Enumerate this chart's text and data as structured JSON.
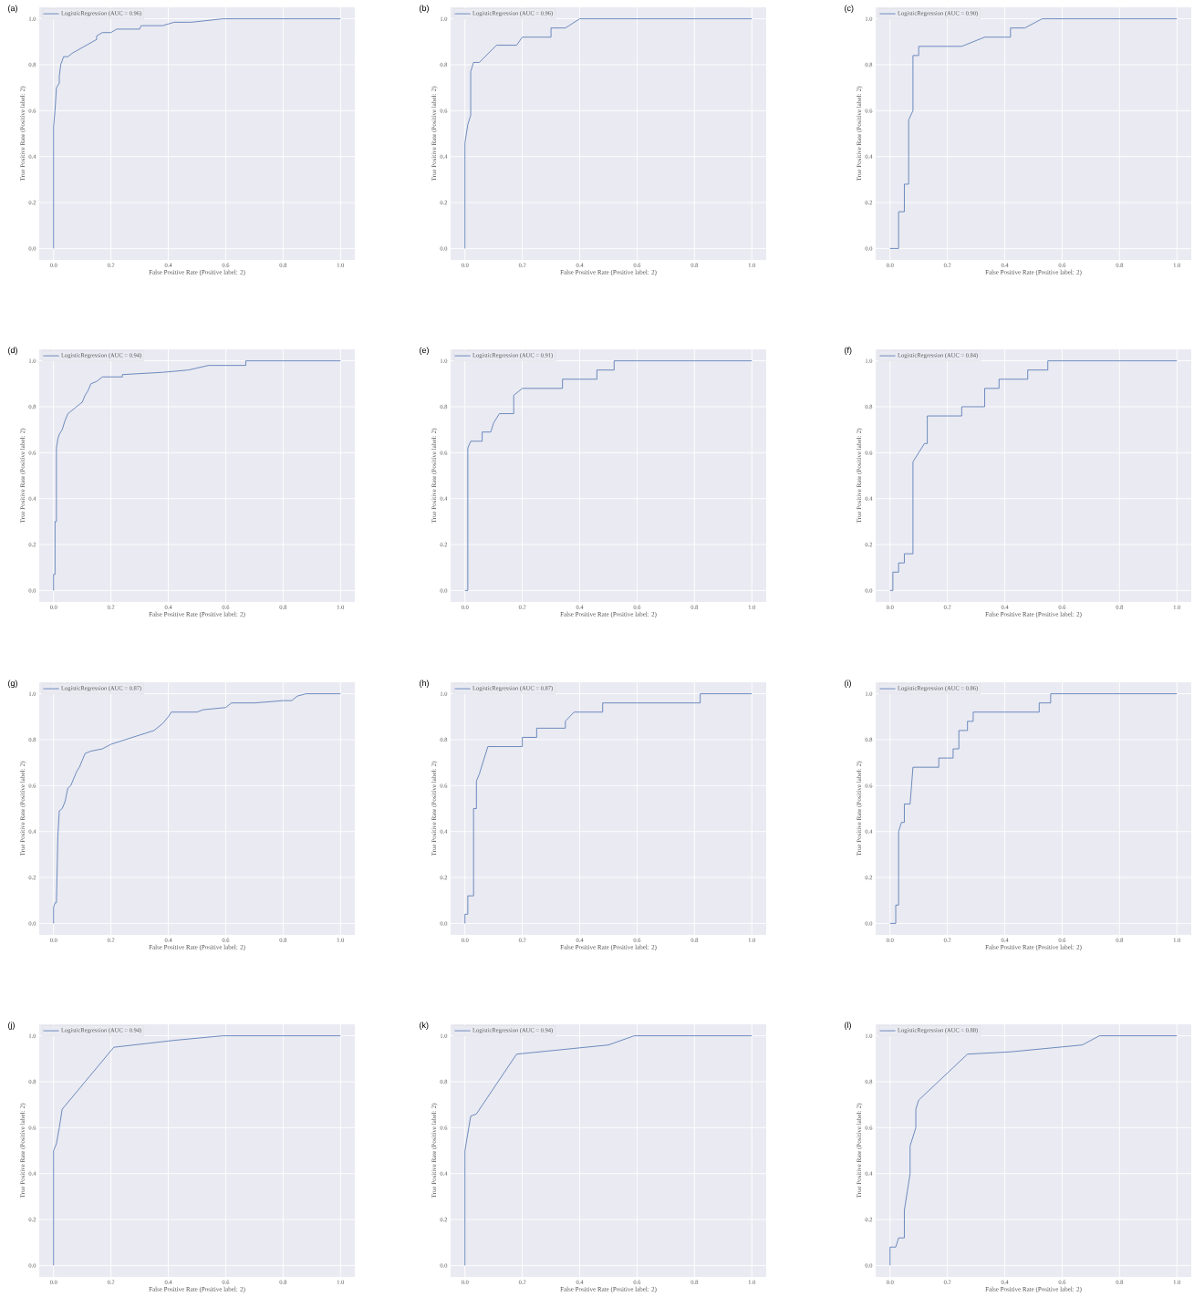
{
  "chart_data": [
    {
      "type": "line",
      "title": "(a)",
      "xlabel": "False Positive Rate (Positive label: 2)",
      "ylabel": "True Positive Rate (Positive label: 2)",
      "xlim": [
        -0.05,
        1.05
      ],
      "ylim": [
        -0.05,
        1.05
      ],
      "xticks": [
        {
          "value": 0,
          "label": "0.0"
        },
        {
          "value": 0.2,
          "label": "0.2"
        },
        {
          "value": 0.4,
          "label": "0.4"
        },
        {
          "value": 0.6,
          "label": "0.6"
        },
        {
          "value": 0.8,
          "label": "0.8"
        },
        {
          "value": 1,
          "label": "1.0"
        }
      ],
      "yticks": [
        {
          "value": 0,
          "label": "0.0"
        },
        {
          "value": 0.2,
          "label": "0.2"
        },
        {
          "value": 0.4,
          "label": "0.4"
        },
        {
          "value": 0.6,
          "label": "0.6"
        },
        {
          "value": 0.8,
          "label": "0.8"
        },
        {
          "value": 1,
          "label": "1.0"
        }
      ],
      "grid": true,
      "legend": "top left",
      "series": [
        {
          "name": "LogisticRegression (AUC = 0.96)",
          "color": "#4c72b0",
          "x": [
            0,
            0,
            0.005,
            0.01,
            0.02,
            0.02,
            0.025,
            0.035,
            0.05,
            0.065,
            0.15,
            0.15,
            0.17,
            0.2,
            0.22,
            0.3,
            0.305,
            0.38,
            0.42,
            0.48,
            0.59,
            1
          ],
          "values": [
            0,
            0.53,
            0.6,
            0.7,
            0.72,
            0.75,
            0.8,
            0.835,
            0.835,
            0.85,
            0.91,
            0.925,
            0.94,
            0.94,
            0.955,
            0.955,
            0.97,
            0.97,
            0.985,
            0.985,
            1,
            1
          ]
        }
      ]
    },
    {
      "type": "line",
      "title": "(b)",
      "xlabel": "False Positive Rate (Positive label: 2)",
      "ylabel": "True Positive Rate (Positive label: 2)",
      "xlim": [
        -0.05,
        1.05
      ],
      "ylim": [
        -0.05,
        1.05
      ],
      "xticks": [
        {
          "value": 0,
          "label": "0.0"
        },
        {
          "value": 0.2,
          "label": "0.2"
        },
        {
          "value": 0.4,
          "label": "0.4"
        },
        {
          "value": 0.6,
          "label": "0.6"
        },
        {
          "value": 0.8,
          "label": "0.8"
        },
        {
          "value": 1,
          "label": "1.0"
        }
      ],
      "yticks": [
        {
          "value": 0,
          "label": "0.0"
        },
        {
          "value": 0.2,
          "label": "0.2"
        },
        {
          "value": 0.4,
          "label": "0.4"
        },
        {
          "value": 0.6,
          "label": "0.6"
        },
        {
          "value": 0.8,
          "label": "0.8"
        },
        {
          "value": 1,
          "label": "1.0"
        }
      ],
      "grid": true,
      "legend": "top left",
      "series": [
        {
          "name": "LogisticRegression (AUC = 0.96)",
          "color": "#4c72b0",
          "x": [
            0,
            0,
            0.01,
            0.02,
            0.02,
            0.03,
            0.05,
            0.11,
            0.18,
            0.2,
            0.3,
            0.3,
            0.35,
            0.4,
            1
          ],
          "values": [
            0,
            0.46,
            0.54,
            0.58,
            0.77,
            0.81,
            0.81,
            0.885,
            0.885,
            0.92,
            0.92,
            0.96,
            0.96,
            1,
            1
          ]
        }
      ]
    },
    {
      "type": "line",
      "title": "(c)",
      "xlabel": "False Positive Rate (Positive label: 2)",
      "ylabel": "True Positive Rate (Positive label: 2)",
      "xlim": [
        -0.05,
        1.05
      ],
      "ylim": [
        -0.05,
        1.05
      ],
      "xticks": [
        {
          "value": 0,
          "label": "0.0"
        },
        {
          "value": 0.2,
          "label": "0.2"
        },
        {
          "value": 0.4,
          "label": "0.4"
        },
        {
          "value": 0.6,
          "label": "0.6"
        },
        {
          "value": 0.8,
          "label": "0.8"
        },
        {
          "value": 1,
          "label": "1.0"
        }
      ],
      "yticks": [
        {
          "value": 0,
          "label": "0.0"
        },
        {
          "value": 0.2,
          "label": "0.2"
        },
        {
          "value": 0.4,
          "label": "0.4"
        },
        {
          "value": 0.6,
          "label": "0.6"
        },
        {
          "value": 0.8,
          "label": "0.8"
        },
        {
          "value": 1,
          "label": "1.0"
        }
      ],
      "grid": true,
      "legend": "top left",
      "series": [
        {
          "name": "LogisticRegression (AUC = 0.90)",
          "color": "#4c72b0",
          "x": [
            0,
            0.03,
            0.03,
            0.05,
            0.05,
            0.065,
            0.065,
            0.08,
            0.08,
            0.1,
            0.1,
            0.25,
            0.33,
            0.42,
            0.42,
            0.47,
            0.53,
            1
          ],
          "values": [
            0,
            0,
            0.16,
            0.16,
            0.28,
            0.28,
            0.56,
            0.6,
            0.84,
            0.84,
            0.88,
            0.88,
            0.92,
            0.92,
            0.96,
            0.96,
            1,
            1
          ]
        }
      ]
    },
    {
      "type": "line",
      "title": "(d)",
      "xlabel": "False Positive Rate (Positive label: 2)",
      "ylabel": "True Positive Rate (Positive label: 2)",
      "xlim": [
        -0.05,
        1.05
      ],
      "ylim": [
        -0.05,
        1.05
      ],
      "xticks": [
        {
          "value": 0,
          "label": "0.0"
        },
        {
          "value": 0.2,
          "label": "0.2"
        },
        {
          "value": 0.4,
          "label": "0.4"
        },
        {
          "value": 0.6,
          "label": "0.6"
        },
        {
          "value": 0.8,
          "label": "0.8"
        },
        {
          "value": 1,
          "label": "1.0"
        }
      ],
      "yticks": [
        {
          "value": 0,
          "label": "0.0"
        },
        {
          "value": 0.2,
          "label": "0.2"
        },
        {
          "value": 0.4,
          "label": "0.4"
        },
        {
          "value": 0.6,
          "label": "0.6"
        },
        {
          "value": 0.8,
          "label": "0.8"
        },
        {
          "value": 1,
          "label": "1.0"
        }
      ],
      "grid": true,
      "legend": "top left",
      "series": [
        {
          "name": "LogisticRegression (AUC = 0.94)",
          "color": "#4c72b0",
          "x": [
            0,
            0,
            0.005,
            0.005,
            0.01,
            0.01,
            0.015,
            0.02,
            0.03,
            0.04,
            0.05,
            0.06,
            0.08,
            0.1,
            0.11,
            0.12,
            0.13,
            0.15,
            0.17,
            0.24,
            0.24,
            0.38,
            0.47,
            0.54,
            0.67,
            0.67,
            1
          ],
          "values": [
            0,
            0.07,
            0.07,
            0.3,
            0.3,
            0.62,
            0.66,
            0.68,
            0.7,
            0.74,
            0.77,
            0.78,
            0.8,
            0.82,
            0.85,
            0.87,
            0.9,
            0.91,
            0.93,
            0.93,
            0.94,
            0.95,
            0.96,
            0.98,
            0.98,
            1,
            1
          ]
        }
      ]
    },
    {
      "type": "line",
      "title": "(e)",
      "xlabel": "False Positive Rate (Positive label: 2)",
      "ylabel": "True Positive Rate (Positive label: 2)",
      "xlim": [
        -0.05,
        1.05
      ],
      "ylim": [
        -0.05,
        1.05
      ],
      "xticks": [
        {
          "value": 0,
          "label": "0.0"
        },
        {
          "value": 0.2,
          "label": "0.2"
        },
        {
          "value": 0.4,
          "label": "0.4"
        },
        {
          "value": 0.6,
          "label": "0.6"
        },
        {
          "value": 0.8,
          "label": "0.8"
        },
        {
          "value": 1,
          "label": "1.0"
        }
      ],
      "yticks": [
        {
          "value": 0,
          "label": "0.0"
        },
        {
          "value": 0.2,
          "label": "0.2"
        },
        {
          "value": 0.4,
          "label": "0.4"
        },
        {
          "value": 0.6,
          "label": "0.6"
        },
        {
          "value": 0.8,
          "label": "0.8"
        },
        {
          "value": 1,
          "label": "1.0"
        }
      ],
      "grid": true,
      "legend": "top left",
      "series": [
        {
          "name": "LogisticRegression (AUC = 0.91)",
          "color": "#4c72b0",
          "x": [
            0,
            0.01,
            0.01,
            0.02,
            0.06,
            0.06,
            0.09,
            0.1,
            0.12,
            0.17,
            0.17,
            0.2,
            0.34,
            0.34,
            0.46,
            0.46,
            0.52,
            0.52,
            1
          ],
          "values": [
            0,
            0,
            0.62,
            0.65,
            0.65,
            0.69,
            0.69,
            0.73,
            0.77,
            0.77,
            0.85,
            0.88,
            0.88,
            0.92,
            0.92,
            0.96,
            0.96,
            1,
            1
          ]
        }
      ]
    },
    {
      "type": "line",
      "title": "(f)",
      "xlabel": "False Positive Rate (Positive label: 2)",
      "ylabel": "True Positive Rate (Positive label: 2)",
      "xlim": [
        -0.05,
        1.05
      ],
      "ylim": [
        -0.05,
        1.05
      ],
      "xticks": [
        {
          "value": 0,
          "label": "0.0"
        },
        {
          "value": 0.2,
          "label": "0.2"
        },
        {
          "value": 0.4,
          "label": "0.4"
        },
        {
          "value": 0.6,
          "label": "0.6"
        },
        {
          "value": 0.8,
          "label": "0.8"
        },
        {
          "value": 1,
          "label": "1.0"
        }
      ],
      "yticks": [
        {
          "value": 0,
          "label": "0.0"
        },
        {
          "value": 0.2,
          "label": "0.2"
        },
        {
          "value": 0.4,
          "label": "0.4"
        },
        {
          "value": 0.6,
          "label": "0.6"
        },
        {
          "value": 0.8,
          "label": "0.8"
        },
        {
          "value": 1,
          "label": "1.0"
        }
      ],
      "grid": true,
      "legend": "top left",
      "series": [
        {
          "name": "LogisticRegression (AUC = 0.84)",
          "color": "#4c72b0",
          "x": [
            0,
            0.01,
            0.01,
            0.03,
            0.03,
            0.05,
            0.05,
            0.08,
            0.08,
            0.1,
            0.12,
            0.13,
            0.13,
            0.25,
            0.25,
            0.33,
            0.33,
            0.38,
            0.38,
            0.48,
            0.48,
            0.55,
            0.55,
            1
          ],
          "values": [
            0,
            0,
            0.08,
            0.08,
            0.12,
            0.12,
            0.16,
            0.16,
            0.56,
            0.6,
            0.64,
            0.64,
            0.76,
            0.76,
            0.8,
            0.8,
            0.88,
            0.88,
            0.92,
            0.92,
            0.96,
            0.96,
            1,
            1
          ]
        }
      ]
    },
    {
      "type": "line",
      "title": "(g)",
      "xlabel": "False Positive Rate (Positive label: 2)",
      "ylabel": "True Positive Rate (Positive label: 2)",
      "xlim": [
        -0.05,
        1.05
      ],
      "ylim": [
        -0.05,
        1.05
      ],
      "xticks": [
        {
          "value": 0,
          "label": "0.0"
        },
        {
          "value": 0.2,
          "label": "0.2"
        },
        {
          "value": 0.4,
          "label": "0.4"
        },
        {
          "value": 0.6,
          "label": "0.6"
        },
        {
          "value": 0.8,
          "label": "0.8"
        },
        {
          "value": 1,
          "label": "1.0"
        }
      ],
      "yticks": [
        {
          "value": 0,
          "label": "0.0"
        },
        {
          "value": 0.2,
          "label": "0.2"
        },
        {
          "value": 0.4,
          "label": "0.4"
        },
        {
          "value": 0.6,
          "label": "0.6"
        },
        {
          "value": 0.8,
          "label": "0.8"
        },
        {
          "value": 1,
          "label": "1.0"
        }
      ],
      "grid": true,
      "legend": "top left",
      "series": [
        {
          "name": "LogisticRegression (AUC = 0.87)",
          "color": "#4c72b0",
          "x": [
            0,
            0,
            0.005,
            0.01,
            0.015,
            0.02,
            0.03,
            0.04,
            0.05,
            0.06,
            0.07,
            0.08,
            0.09,
            0.1,
            0.11,
            0.13,
            0.17,
            0.2,
            0.25,
            0.3,
            0.35,
            0.38,
            0.4,
            0.41,
            0.5,
            0.52,
            0.6,
            0.62,
            0.7,
            0.8,
            0.83,
            0.85,
            0.88,
            1
          ],
          "values": [
            0,
            0.07,
            0.09,
            0.09,
            0.38,
            0.49,
            0.5,
            0.53,
            0.59,
            0.6,
            0.63,
            0.66,
            0.68,
            0.71,
            0.74,
            0.75,
            0.76,
            0.78,
            0.8,
            0.82,
            0.84,
            0.87,
            0.9,
            0.92,
            0.92,
            0.93,
            0.94,
            0.96,
            0.96,
            0.97,
            0.97,
            0.99,
            1,
            1
          ]
        }
      ]
    },
    {
      "type": "line",
      "title": "(h)",
      "xlabel": "False Positive Rate (Positive label: 2)",
      "ylabel": "True Positive Rate (Positive label: 2)",
      "xlim": [
        -0.05,
        1.05
      ],
      "ylim": [
        -0.05,
        1.05
      ],
      "xticks": [
        {
          "value": 0,
          "label": "0.0"
        },
        {
          "value": 0.2,
          "label": "0.2"
        },
        {
          "value": 0.4,
          "label": "0.4"
        },
        {
          "value": 0.6,
          "label": "0.6"
        },
        {
          "value": 0.8,
          "label": "0.8"
        },
        {
          "value": 1,
          "label": "1.0"
        }
      ],
      "yticks": [
        {
          "value": 0,
          "label": "0.0"
        },
        {
          "value": 0.2,
          "label": "0.2"
        },
        {
          "value": 0.4,
          "label": "0.4"
        },
        {
          "value": 0.6,
          "label": "0.6"
        },
        {
          "value": 0.8,
          "label": "0.8"
        },
        {
          "value": 1,
          "label": "1.0"
        }
      ],
      "grid": true,
      "legend": "top left",
      "series": [
        {
          "name": "LogisticRegression (AUC = 0.87)",
          "color": "#4c72b0",
          "x": [
            0,
            0,
            0.01,
            0.01,
            0.03,
            0.03,
            0.04,
            0.04,
            0.05,
            0.06,
            0.07,
            0.08,
            0.2,
            0.2,
            0.25,
            0.25,
            0.35,
            0.35,
            0.38,
            0.48,
            0.48,
            0.82,
            0.82,
            1
          ],
          "values": [
            0,
            0.04,
            0.04,
            0.12,
            0.12,
            0.5,
            0.5,
            0.62,
            0.65,
            0.69,
            0.73,
            0.77,
            0.77,
            0.81,
            0.81,
            0.85,
            0.85,
            0.88,
            0.92,
            0.92,
            0.96,
            0.96,
            1,
            1
          ]
        }
      ]
    },
    {
      "type": "line",
      "title": "(i)",
      "xlabel": "False Positive Rate (Positive label: 2)",
      "ylabel": "True Positive Rate (Positive label: 2)",
      "xlim": [
        -0.05,
        1.05
      ],
      "ylim": [
        -0.05,
        1.05
      ],
      "xticks": [
        {
          "value": 0,
          "label": "0.0"
        },
        {
          "value": 0.2,
          "label": "0.2"
        },
        {
          "value": 0.4,
          "label": "0.4"
        },
        {
          "value": 0.6,
          "label": "0.6"
        },
        {
          "value": 0.8,
          "label": "0.8"
        },
        {
          "value": 1,
          "label": "1.0"
        }
      ],
      "yticks": [
        {
          "value": 0,
          "label": "0.0"
        },
        {
          "value": 0.2,
          "label": "0.2"
        },
        {
          "value": 0.4,
          "label": "0.4"
        },
        {
          "value": 0.6,
          "label": "0.6"
        },
        {
          "value": 0.8,
          "label": "0.8"
        },
        {
          "value": 1,
          "label": "1.0"
        }
      ],
      "grid": true,
      "legend": "top left",
      "series": [
        {
          "name": "LogisticRegression (AUC = 0.86)",
          "color": "#4c72b0",
          "x": [
            0,
            0.02,
            0.02,
            0.03,
            0.03,
            0.04,
            0.05,
            0.05,
            0.07,
            0.08,
            0.17,
            0.17,
            0.22,
            0.22,
            0.24,
            0.24,
            0.27,
            0.27,
            0.29,
            0.29,
            0.52,
            0.52,
            0.56,
            0.56,
            1
          ],
          "values": [
            0,
            0,
            0.08,
            0.08,
            0.4,
            0.44,
            0.44,
            0.52,
            0.52,
            0.68,
            0.68,
            0.72,
            0.72,
            0.76,
            0.76,
            0.84,
            0.84,
            0.88,
            0.88,
            0.92,
            0.92,
            0.96,
            0.96,
            1,
            1
          ]
        }
      ]
    },
    {
      "type": "line",
      "title": "(j)",
      "xlabel": "False Positive Rate (Positive label: 2)",
      "ylabel": "True Positive Rate (Positive label: 2)",
      "xlim": [
        -0.05,
        1.05
      ],
      "ylim": [
        -0.05,
        1.05
      ],
      "xticks": [
        {
          "value": 0,
          "label": "0.0"
        },
        {
          "value": 0.2,
          "label": "0.2"
        },
        {
          "value": 0.4,
          "label": "0.4"
        },
        {
          "value": 0.6,
          "label": "0.6"
        },
        {
          "value": 0.8,
          "label": "0.8"
        },
        {
          "value": 1,
          "label": "1.0"
        }
      ],
      "yticks": [
        {
          "value": 0,
          "label": "0.0"
        },
        {
          "value": 0.2,
          "label": "0.2"
        },
        {
          "value": 0.4,
          "label": "0.4"
        },
        {
          "value": 0.6,
          "label": "0.6"
        },
        {
          "value": 0.8,
          "label": "0.8"
        },
        {
          "value": 1,
          "label": "1.0"
        }
      ],
      "grid": true,
      "legend": "top left",
      "series": [
        {
          "name": "LogisticRegression (AUC = 0.94)",
          "color": "#4c72b0",
          "x": [
            0,
            0,
            0.01,
            0.02,
            0.03,
            0.21,
            0.42,
            0.59,
            1
          ],
          "values": [
            0,
            0.5,
            0.53,
            0.6,
            0.68,
            0.95,
            0.98,
            1,
            1
          ]
        }
      ]
    },
    {
      "type": "line",
      "title": "(k)",
      "xlabel": "False Positive Rate (Positive label: 2)",
      "ylabel": "True Positive Rate (Positive label: 2)",
      "xlim": [
        -0.05,
        1.05
      ],
      "ylim": [
        -0.05,
        1.05
      ],
      "xticks": [
        {
          "value": 0,
          "label": "0.0"
        },
        {
          "value": 0.2,
          "label": "0.2"
        },
        {
          "value": 0.4,
          "label": "0.4"
        },
        {
          "value": 0.6,
          "label": "0.6"
        },
        {
          "value": 0.8,
          "label": "0.8"
        },
        {
          "value": 1,
          "label": "1.0"
        }
      ],
      "yticks": [
        {
          "value": 0,
          "label": "0.0"
        },
        {
          "value": 0.2,
          "label": "0.2"
        },
        {
          "value": 0.4,
          "label": "0.4"
        },
        {
          "value": 0.6,
          "label": "0.6"
        },
        {
          "value": 0.8,
          "label": "0.8"
        },
        {
          "value": 1,
          "label": "1.0"
        }
      ],
      "grid": true,
      "legend": "top left",
      "series": [
        {
          "name": "LogisticRegression (AUC = 0.94)",
          "color": "#4c72b0",
          "x": [
            0,
            0,
            0.02,
            0.04,
            0.18,
            0.5,
            0.59,
            1
          ],
          "values": [
            0,
            0.5,
            0.65,
            0.66,
            0.92,
            0.96,
            1,
            1
          ]
        }
      ]
    },
    {
      "type": "line",
      "title": "(l)",
      "xlabel": "False Positive Rate (Positive label: 2)",
      "ylabel": "True Positive Rate (Positive label: 2)",
      "xlim": [
        -0.05,
        1.05
      ],
      "ylim": [
        -0.05,
        1.05
      ],
      "xticks": [
        {
          "value": 0,
          "label": "0.0"
        },
        {
          "value": 0.2,
          "label": "0.2"
        },
        {
          "value": 0.4,
          "label": "0.4"
        },
        {
          "value": 0.6,
          "label": "0.6"
        },
        {
          "value": 0.8,
          "label": "0.8"
        },
        {
          "value": 1,
          "label": "1.0"
        }
      ],
      "yticks": [
        {
          "value": 0,
          "label": "0.0"
        },
        {
          "value": 0.2,
          "label": "0.2"
        },
        {
          "value": 0.4,
          "label": "0.4"
        },
        {
          "value": 0.6,
          "label": "0.6"
        },
        {
          "value": 0.8,
          "label": "0.8"
        },
        {
          "value": 1,
          "label": "1.0"
        }
      ],
      "grid": true,
      "legend": "top left",
      "series": [
        {
          "name": "LogisticRegression (AUC = 0.88)",
          "color": "#4c72b0",
          "x": [
            0,
            0,
            0.02,
            0.03,
            0.05,
            0.05,
            0.06,
            0.07,
            0.07,
            0.08,
            0.09,
            0.09,
            0.1,
            0.27,
            0.42,
            0.67,
            0.73,
            1
          ],
          "values": [
            0,
            0.08,
            0.08,
            0.12,
            0.12,
            0.24,
            0.32,
            0.4,
            0.52,
            0.56,
            0.6,
            0.68,
            0.72,
            0.92,
            0.93,
            0.96,
            1,
            1
          ]
        }
      ]
    }
  ]
}
